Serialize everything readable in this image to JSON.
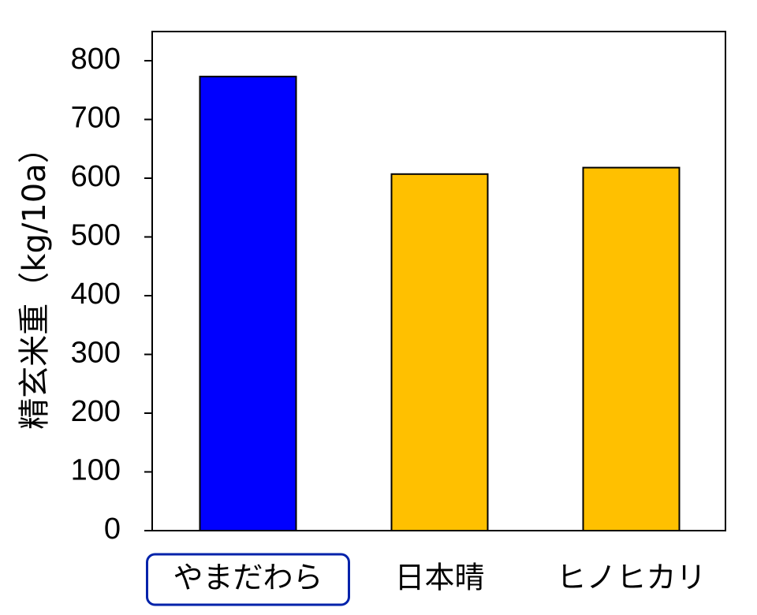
{
  "chart_data": {
    "type": "bar",
    "title": "",
    "xlabel": "",
    "ylabel": "精玄米重（kg/10a）",
    "categories": [
      "やまだわら",
      "日本晴",
      "ヒノヒカリ"
    ],
    "values": [
      773,
      607,
      618
    ],
    "bar_colors": [
      "#0000ff",
      "#ffc000",
      "#ffc000"
    ],
    "highlighted_category": "やまだわら",
    "highlight_color": "#0022aa",
    "ylim": [
      0,
      800
    ],
    "yticks": [
      0,
      100,
      200,
      300,
      400,
      500,
      600,
      700,
      800
    ],
    "grid": false,
    "legend": "none"
  }
}
